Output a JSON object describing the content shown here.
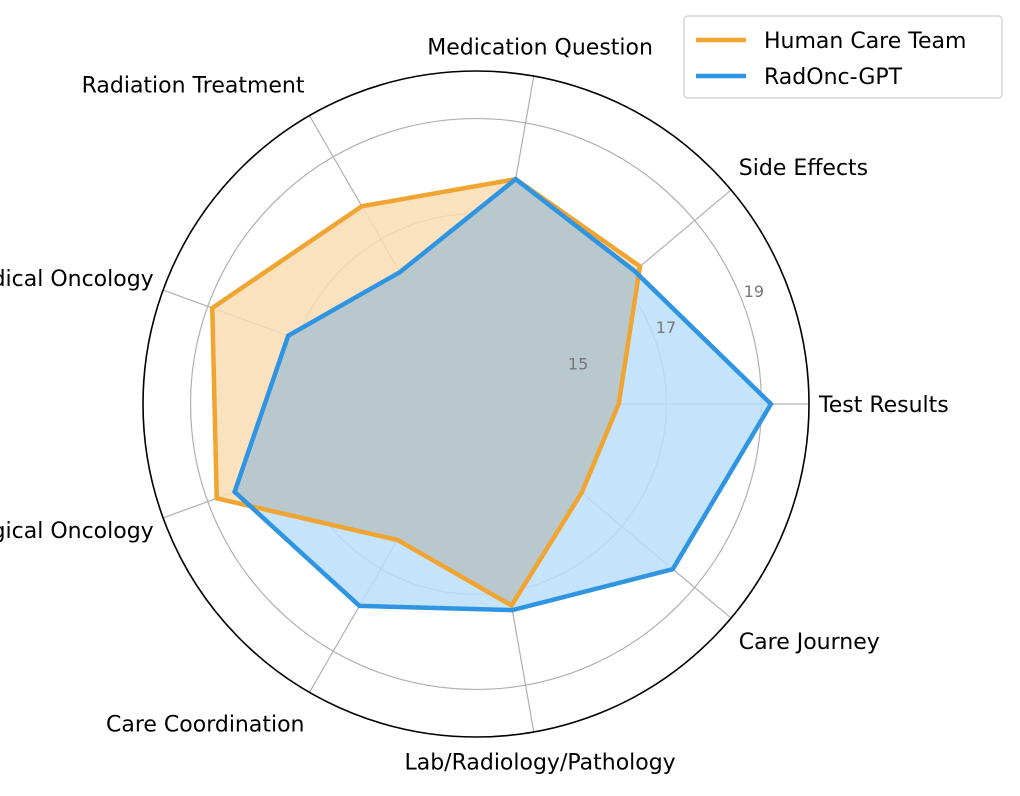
{
  "chart_data": {
    "type": "radar",
    "categories": [
      "Test Results",
      "Side Effects",
      "Medication Question",
      "Radiation Treatment",
      "Medical Oncology",
      "Surgical Oncology",
      "Care Coordination",
      "Lab/Radiology/Pathology",
      "Care Journey"
    ],
    "series": [
      {
        "name": "Human Care Team",
        "color": "#F0A431",
        "fill": "#F9DDB4",
        "values": [
          16.0,
          17.5,
          17.8,
          17.8,
          18.9,
          18.8,
          16.3,
          17.3,
          15.9
        ]
      },
      {
        "name": "RadOnc-GPT",
        "color": "#2F95E2",
        "fill": "#BBDEF9",
        "values": [
          19.2,
          17.35,
          17.8,
          16.2,
          17.2,
          18.4,
          17.9,
          17.4,
          18.4
        ]
      }
    ],
    "r_ticks": [
      15,
      17,
      19
    ],
    "r_gridlines": [
      15,
      17,
      19
    ],
    "rlim": [
      13,
      20
    ],
    "grid": true,
    "legend": "top-right"
  }
}
